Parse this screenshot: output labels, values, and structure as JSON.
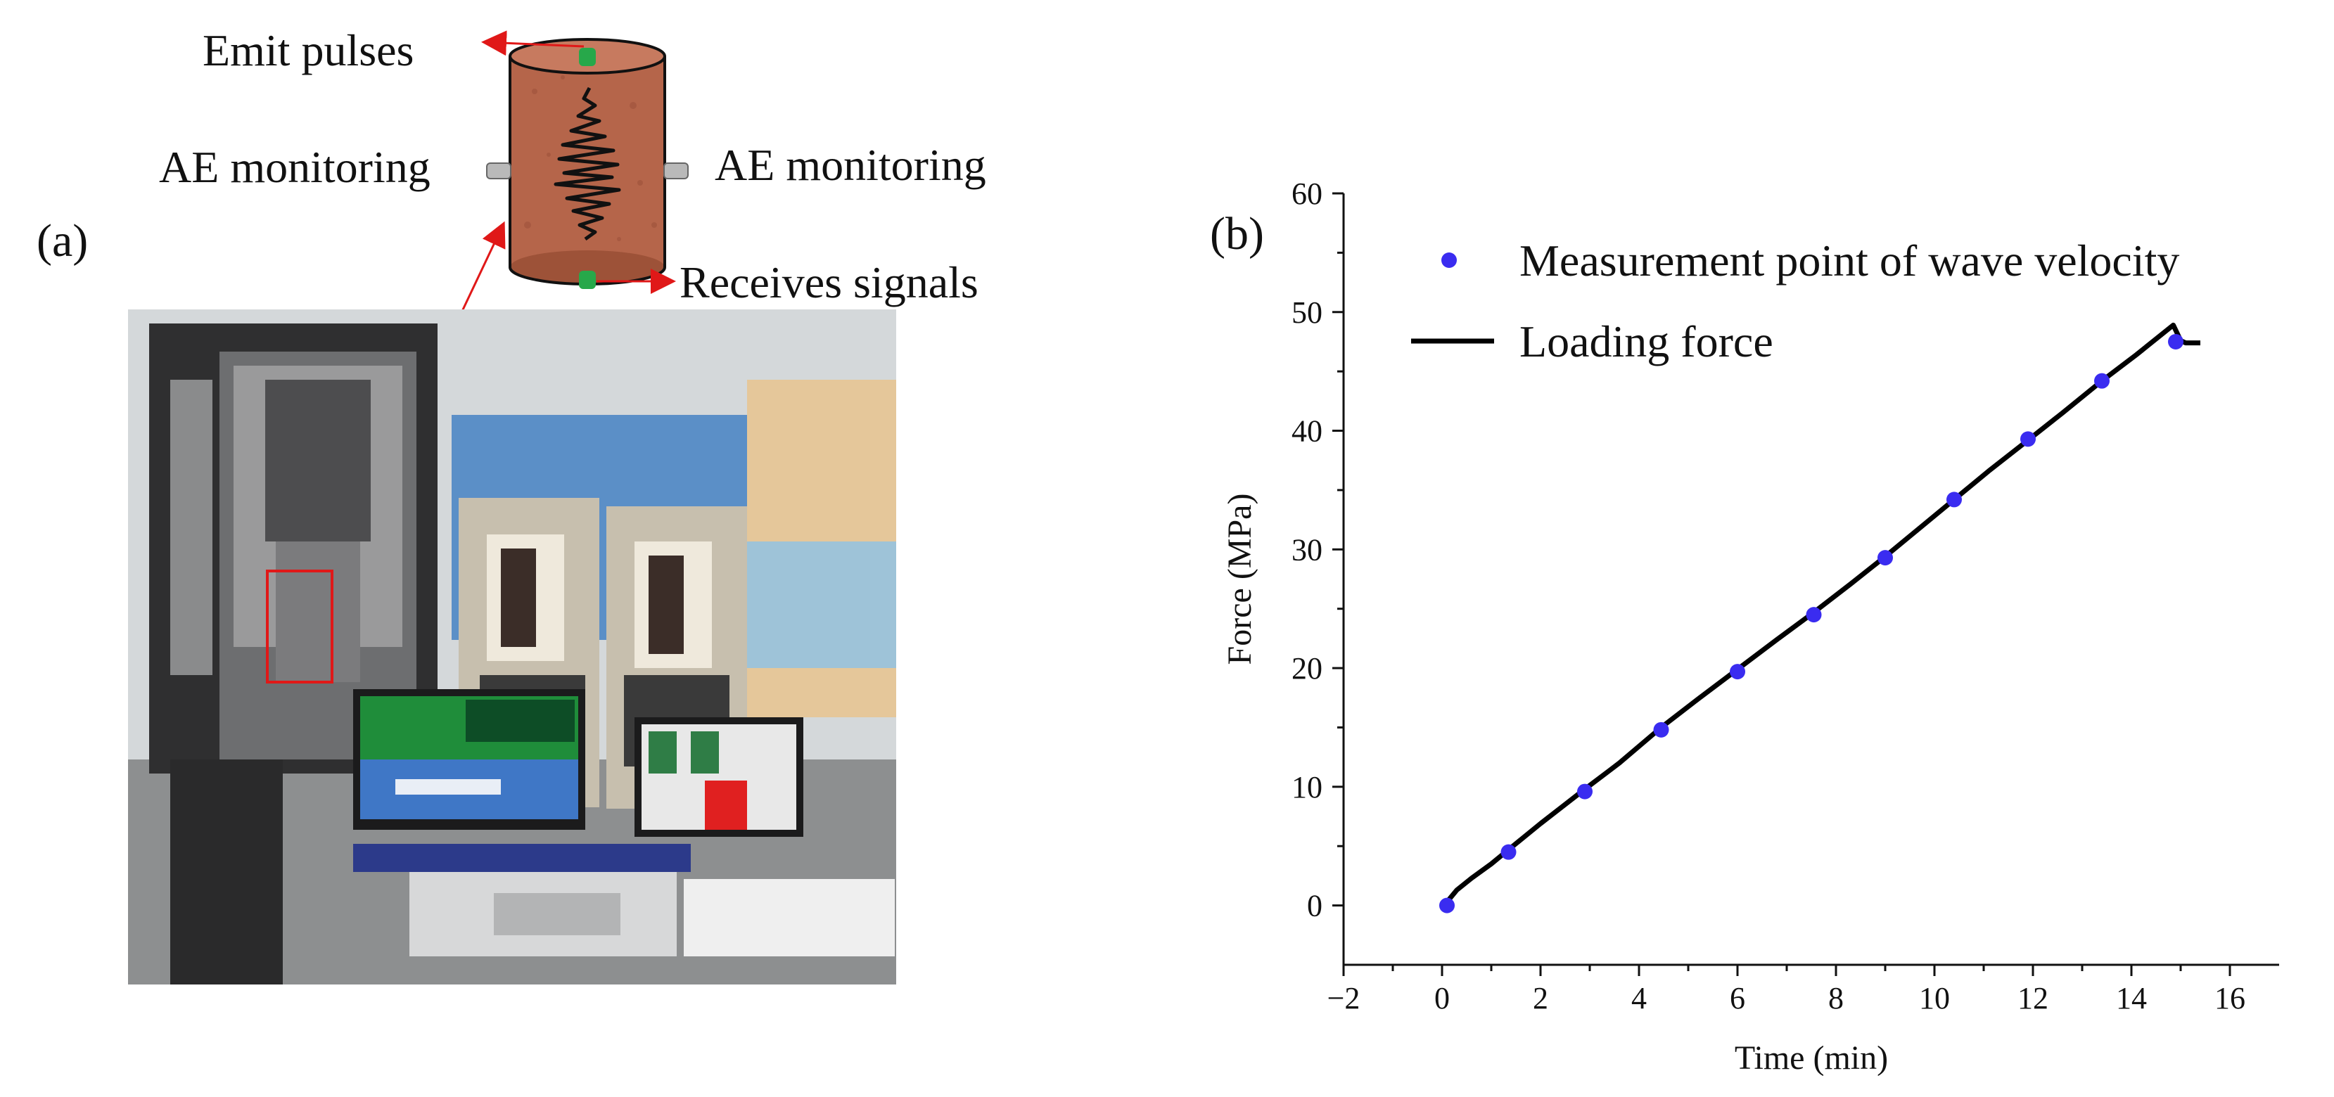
{
  "panel_a": {
    "label": "(a)",
    "schematic": {
      "emit_label": "Emit pulses",
      "ae_left_label": "AE monitoring",
      "ae_right_label": "AE monitoring",
      "receive_label": "Receives signals",
      "specimen_color": "#b5654a",
      "sensor_color": "#27a84a",
      "arrow_color": "#e01818"
    }
  },
  "panel_b": {
    "label": "(b)"
  },
  "chart_data": {
    "type": "scatter",
    "xlabel": "Time (min)",
    "ylabel": "Force (MPa)",
    "xlim": [
      -2,
      17
    ],
    "ylim": [
      -5,
      60
    ],
    "xticks": [
      -2,
      0,
      2,
      4,
      6,
      8,
      10,
      12,
      14,
      16
    ],
    "yticks": [
      0,
      10,
      20,
      30,
      40,
      50,
      60
    ],
    "grid": false,
    "legend_position": "top",
    "series": [
      {
        "name": "Measurement point of wave velocity",
        "kind": "points",
        "color": "#3a2cf0",
        "x": [
          0.1,
          1.35,
          2.9,
          4.45,
          6.0,
          7.55,
          9.0,
          10.4,
          11.9,
          13.4,
          14.9
        ],
        "y": [
          0,
          4.5,
          9.6,
          14.8,
          19.7,
          24.5,
          29.3,
          34.2,
          39.3,
          44.2,
          47.5
        ]
      },
      {
        "name": "Loading force",
        "kind": "line",
        "color": "#000000",
        "x": [
          0.1,
          0.3,
          0.6,
          1.0,
          1.35,
          2.0,
          2.9,
          3.6,
          4.45,
          5.2,
          6.0,
          6.8,
          7.55,
          8.3,
          9.0,
          9.7,
          10.4,
          11.1,
          11.9,
          12.6,
          13.4,
          14.1,
          14.85,
          15.0,
          15.1,
          15.4
        ],
        "y": [
          0.3,
          1.3,
          2.3,
          3.5,
          4.7,
          6.9,
          9.8,
          12.0,
          15.0,
          17.4,
          19.9,
          22.4,
          24.7,
          27.1,
          29.4,
          31.8,
          34.2,
          36.6,
          39.2,
          41.5,
          44.2,
          46.4,
          48.9,
          47.6,
          47.4,
          47.4
        ]
      }
    ]
  }
}
